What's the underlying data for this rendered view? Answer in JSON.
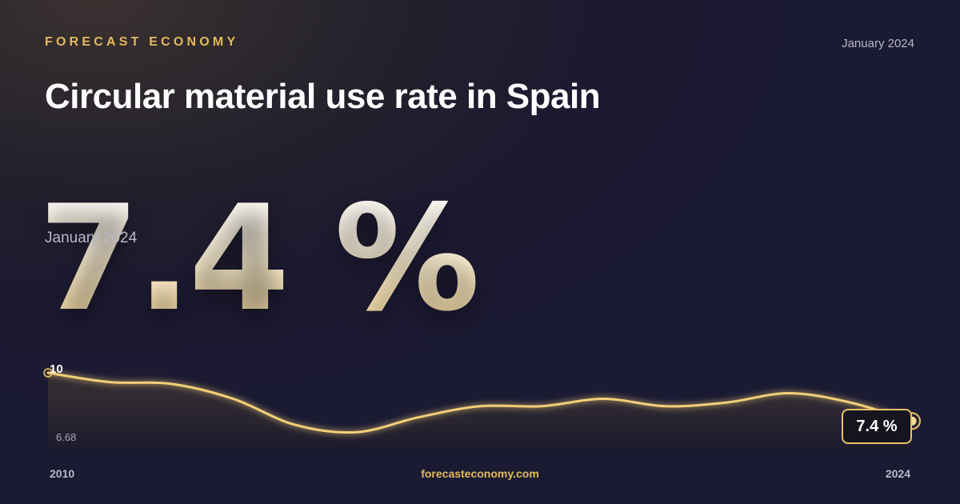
{
  "header": {
    "brand": "FORECAST ECONOMY",
    "date": "January 2024",
    "title": "Circular material use rate in Spain"
  },
  "hero": {
    "value": "7.4 %",
    "date": "January 2024"
  },
  "footer": {
    "site": "forecasteconomy.com"
  },
  "colors": {
    "accent": "#e3b95c",
    "line": "#f2cf78",
    "background": "#1b1a33"
  },
  "chart_data": {
    "type": "area",
    "x": [
      2010,
      2011,
      2012,
      2013,
      2014,
      2015,
      2016,
      2017,
      2018,
      2019,
      2020,
      2021,
      2022,
      2023,
      2024
    ],
    "values": [
      10,
      9.5,
      9.4,
      8.6,
      7.2,
      6.8,
      7.6,
      8.2,
      8.2,
      8.6,
      8.2,
      8.4,
      8.9,
      8.4,
      7.4
    ],
    "ylim": [
      6.68,
      10
    ],
    "y_max_label": "10",
    "y_min_label": "6.68",
    "x_start_label": "2010",
    "x_end_label": "2024",
    "last_value_label": "7.4 %",
    "grid": false
  }
}
